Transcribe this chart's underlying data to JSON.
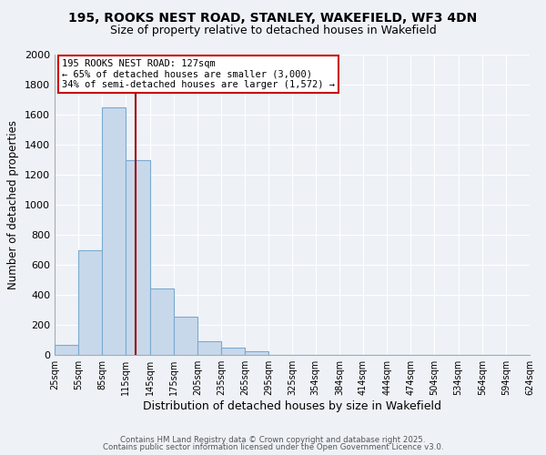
{
  "title_line1": "195, ROOKS NEST ROAD, STANLEY, WAKEFIELD, WF3 4DN",
  "title_line2": "Size of property relative to detached houses in Wakefield",
  "xlabel": "Distribution of detached houses by size in Wakefield",
  "ylabel": "Number of detached properties",
  "bar_values": [
    65,
    700,
    1650,
    1300,
    440,
    255,
    90,
    50,
    25,
    0,
    0,
    0,
    0,
    0,
    0,
    0,
    0,
    0,
    0,
    0
  ],
  "bin_edges": [
    25,
    55,
    85,
    115,
    145,
    175,
    205,
    235,
    265,
    295,
    325,
    354,
    384,
    414,
    444,
    474,
    504,
    534,
    564,
    594,
    624
  ],
  "tick_labels": [
    "25sqm",
    "55sqm",
    "85sqm",
    "115sqm",
    "145sqm",
    "175sqm",
    "205sqm",
    "235sqm",
    "265sqm",
    "295sqm",
    "325sqm",
    "354sqm",
    "384sqm",
    "414sqm",
    "444sqm",
    "474sqm",
    "504sqm",
    "534sqm",
    "564sqm",
    "594sqm",
    "624sqm"
  ],
  "bar_color": "#c8d8eb",
  "bar_edge_color": "#7aaad0",
  "vline_x": 127,
  "vline_color": "#990000",
  "annotation_title": "195 ROOKS NEST ROAD: 127sqm",
  "annotation_line2": "← 65% of detached houses are smaller (3,000)",
  "annotation_line3": "34% of semi-detached houses are larger (1,572) →",
  "annotation_box_color": "#ffffff",
  "annotation_box_edge": "#cc0000",
  "ylim": [
    0,
    2000
  ],
  "yticks": [
    0,
    200,
    400,
    600,
    800,
    1000,
    1200,
    1400,
    1600,
    1800,
    2000
  ],
  "footer1": "Contains HM Land Registry data © Crown copyright and database right 2025.",
  "footer2": "Contains public sector information licensed under the Open Government Licence v3.0.",
  "bg_color": "#eef2f7",
  "grid_color": "#ffffff",
  "title_fontsize": 10,
  "subtitle_fontsize": 9,
  "ylabel_fontsize": 8.5,
  "xlabel_fontsize": 9,
  "ytick_fontsize": 8,
  "xtick_fontsize": 7
}
